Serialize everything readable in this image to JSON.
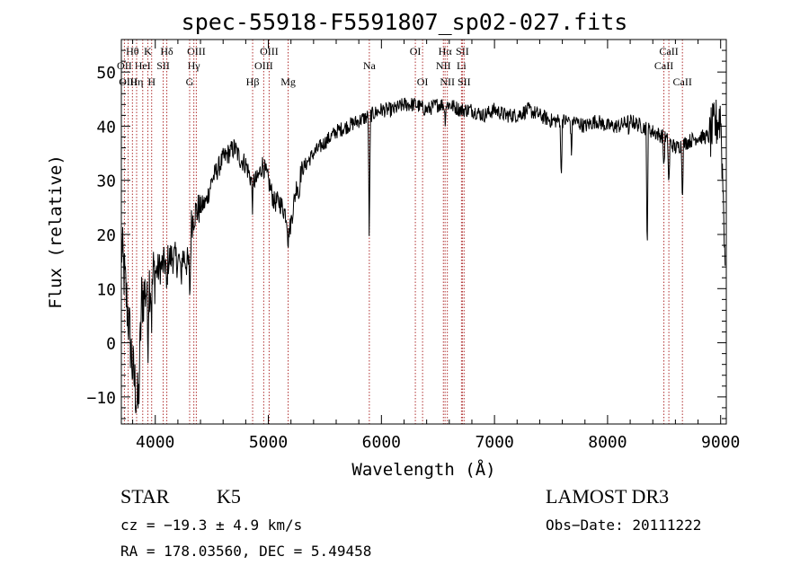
{
  "chart_data": {
    "type": "line",
    "title": "spec-55918-F5591807_sp02-027.fits",
    "xlabel": "Wavelength (Å)",
    "ylabel": "Flux (relative)",
    "xlim": [
      3700,
      9050
    ],
    "ylim": [
      -15,
      56
    ],
    "xticks": [
      4000,
      5000,
      6000,
      7000,
      8000,
      9000
    ],
    "yticks": [
      -10,
      0,
      10,
      20,
      30,
      40,
      50
    ],
    "xtick_labels": [
      "4000",
      "5000",
      "6000",
      "7000",
      "8000",
      "9000"
    ],
    "ytick_labels": [
      "−10",
      "0",
      "10",
      "20",
      "30",
      "40",
      "50"
    ],
    "line_color": "#000000",
    "marker_color": "#b03030",
    "spectrum_anchors": [
      [
        3700,
        18
      ],
      [
        3760,
        5
      ],
      [
        3800,
        -5
      ],
      [
        3850,
        -12
      ],
      [
        3880,
        8
      ],
      [
        3920,
        10
      ],
      [
        3960,
        12
      ],
      [
        4000,
        13
      ],
      [
        4050,
        14
      ],
      [
        4100,
        15
      ],
      [
        4150,
        16
      ],
      [
        4200,
        15
      ],
      [
        4250,
        16
      ],
      [
        4300,
        14
      ],
      [
        4320,
        22
      ],
      [
        4350,
        24
      ],
      [
        4400,
        25
      ],
      [
        4450,
        26
      ],
      [
        4500,
        30
      ],
      [
        4550,
        32
      ],
      [
        4600,
        34
      ],
      [
        4650,
        35
      ],
      [
        4700,
        36
      ],
      [
        4750,
        34
      ],
      [
        4800,
        33
      ],
      [
        4850,
        30
      ],
      [
        4900,
        30
      ],
      [
        4950,
        33
      ],
      [
        5000,
        30
      ],
      [
        5050,
        26
      ],
      [
        5100,
        26
      ],
      [
        5150,
        24
      ],
      [
        5190,
        21
      ],
      [
        5250,
        29
      ],
      [
        5300,
        32
      ],
      [
        5400,
        35
      ],
      [
        5500,
        37
      ],
      [
        5600,
        39
      ],
      [
        5700,
        40
      ],
      [
        5800,
        41
      ],
      [
        5900,
        42
      ],
      [
        6000,
        43
      ],
      [
        6100,
        43
      ],
      [
        6200,
        44
      ],
      [
        6300,
        44
      ],
      [
        6400,
        43
      ],
      [
        6500,
        44
      ],
      [
        6600,
        44
      ],
      [
        6700,
        43
      ],
      [
        6800,
        43
      ],
      [
        6900,
        42
      ],
      [
        7000,
        43
      ],
      [
        7100,
        42
      ],
      [
        7200,
        42
      ],
      [
        7300,
        43
      ],
      [
        7400,
        42
      ],
      [
        7500,
        41
      ],
      [
        7600,
        41
      ],
      [
        7700,
        41
      ],
      [
        7800,
        40
      ],
      [
        7900,
        41
      ],
      [
        8000,
        40
      ],
      [
        8100,
        40
      ],
      [
        8200,
        41
      ],
      [
        8300,
        40
      ],
      [
        8400,
        39
      ],
      [
        8500,
        38
      ],
      [
        8600,
        36
      ],
      [
        8700,
        37
      ],
      [
        8800,
        38
      ],
      [
        8900,
        38
      ],
      [
        8950,
        40
      ],
      [
        9000,
        42
      ],
      [
        9050,
        10
      ]
    ],
    "absorption_features": [
      [
        3934,
        11
      ],
      [
        3968,
        7
      ],
      [
        4101,
        6
      ],
      [
        4227,
        5
      ],
      [
        4307,
        8
      ],
      [
        4861,
        5
      ],
      [
        5175,
        4
      ],
      [
        5270,
        4
      ],
      [
        5893,
        24
      ],
      [
        6563,
        3
      ],
      [
        7590,
        12
      ],
      [
        7680,
        6
      ],
      [
        8350,
        24
      ],
      [
        8498,
        6
      ],
      [
        8542,
        9
      ],
      [
        8662,
        10
      ],
      [
        8190,
        3
      ]
    ],
    "lines": [
      {
        "label": "Hθ",
        "wl": 3798,
        "row": 1
      },
      {
        "label": "OII",
        "wl": 3727,
        "row": 2
      },
      {
        "label": "OIII",
        "wl": 3760,
        "row": 3
      },
      {
        "label": "K",
        "wl": 3934,
        "row": 1
      },
      {
        "label": "HeI",
        "wl": 3889,
        "row": 2
      },
      {
        "label": "Hη",
        "wl": 3835,
        "row": 3
      },
      {
        "label": "Hδ",
        "wl": 4102,
        "row": 1
      },
      {
        "label": "SII",
        "wl": 4070,
        "row": 2
      },
      {
        "label": "H",
        "wl": 3968,
        "row": 3
      },
      {
        "label": "OIII",
        "wl": 4363,
        "row": 1
      },
      {
        "label": "Hγ",
        "wl": 4341,
        "row": 2
      },
      {
        "label": "G",
        "wl": 4304,
        "row": 3
      },
      {
        "label": "OIII",
        "wl": 5007,
        "row": 1
      },
      {
        "label": "OIII",
        "wl": 4959,
        "row": 2
      },
      {
        "label": "Hβ",
        "wl": 4861,
        "row": 3
      },
      {
        "label": "Mg",
        "wl": 5175,
        "row": 3
      },
      {
        "label": "Na",
        "wl": 5893,
        "row": 2
      },
      {
        "label": "OI",
        "wl": 6300,
        "row": 1
      },
      {
        "label": "OI",
        "wl": 6364,
        "row": 3
      },
      {
        "label": "Hα",
        "wl": 6563,
        "row": 1
      },
      {
        "label": "NII",
        "wl": 6548,
        "row": 2
      },
      {
        "label": "NII",
        "wl": 6583,
        "row": 3
      },
      {
        "label": "SII",
        "wl": 6716,
        "row": 1
      },
      {
        "label": "Li",
        "wl": 6708,
        "row": 2
      },
      {
        "label": "SII",
        "wl": 6731,
        "row": 3
      },
      {
        "label": "CaII",
        "wl": 8542,
        "row": 1
      },
      {
        "label": "CaII",
        "wl": 8498,
        "row": 2
      },
      {
        "label": "CaII",
        "wl": 8662,
        "row": 3
      }
    ]
  },
  "info": {
    "class": "STAR",
    "subclass": "K5",
    "survey": "LAMOST DR3",
    "cz": "cz = −19.3 ± 4.9 km/s",
    "obs_date": "Obs−Date: 20111222",
    "radec": "RA = 178.03560, DEC =   5.49458"
  }
}
